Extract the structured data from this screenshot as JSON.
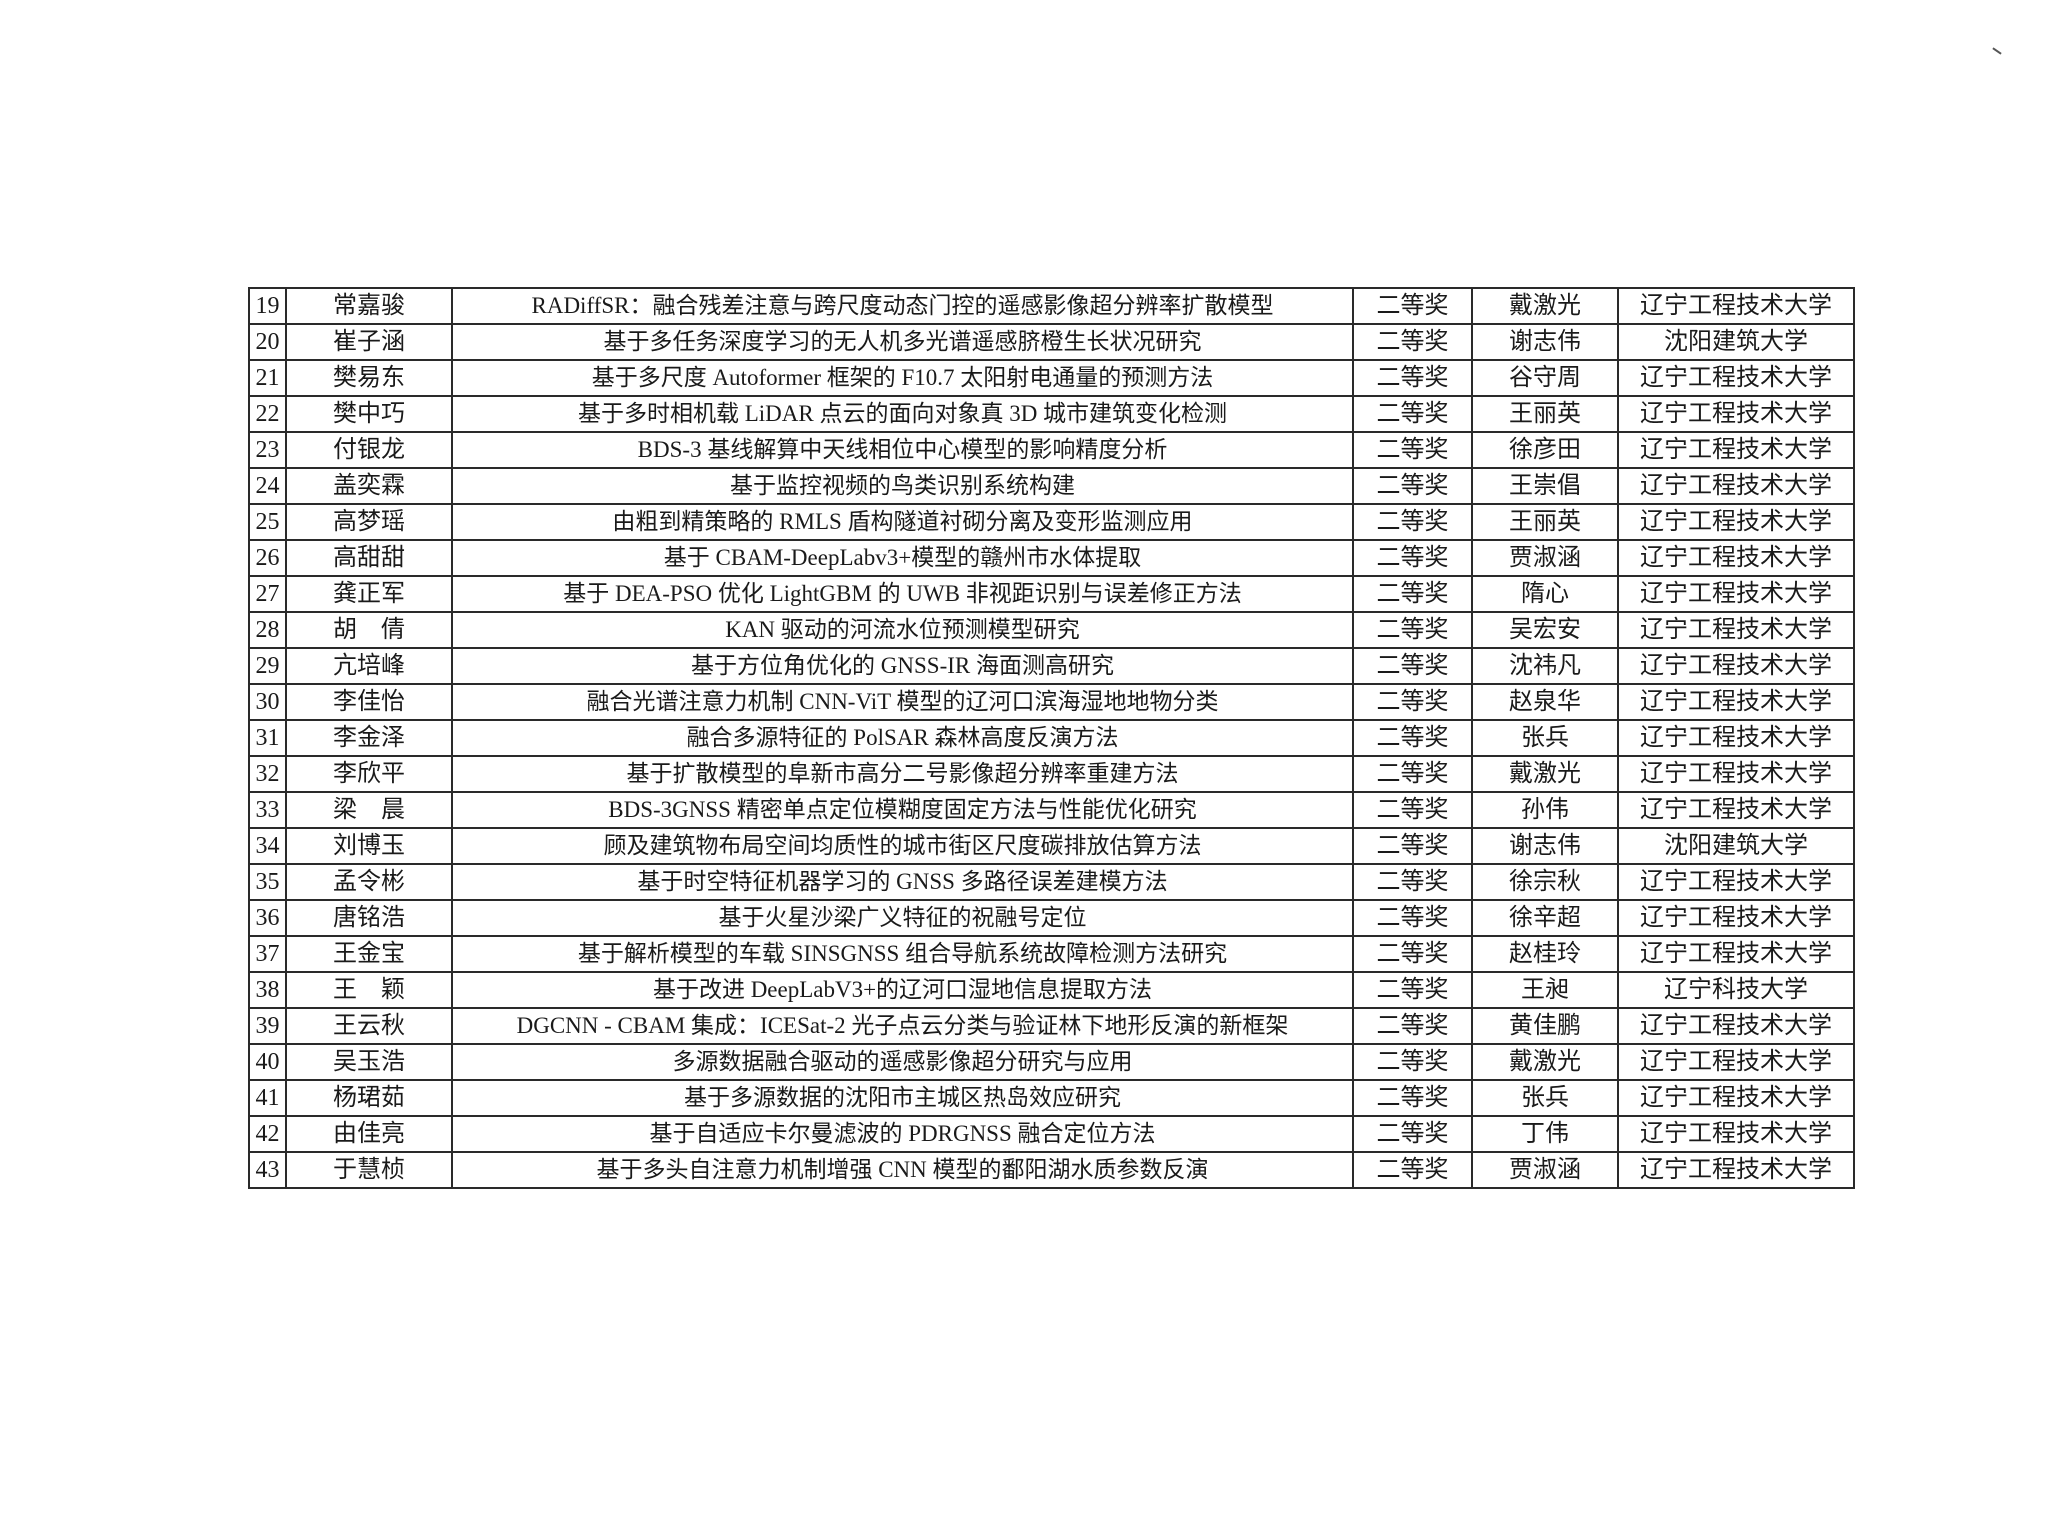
{
  "award_list": {
    "rows": [
      {
        "no": "19",
        "student": "常嘉骏",
        "title": "RADiffSR：融合残差注意与跨尺度动态门控的遥感影像超分辨率扩散模型",
        "award": "二等奖",
        "advisor": "戴激光",
        "school": "辽宁工程技术大学"
      },
      {
        "no": "20",
        "student": "崔子涵",
        "title": "基于多任务深度学习的无人机多光谱遥感脐橙生长状况研究",
        "award": "二等奖",
        "advisor": "谢志伟",
        "school": "沈阳建筑大学"
      },
      {
        "no": "21",
        "student": "樊易东",
        "title": "基于多尺度 Autoformer 框架的 F10.7 太阳射电通量的预测方法",
        "award": "二等奖",
        "advisor": "谷守周",
        "school": "辽宁工程技术大学"
      },
      {
        "no": "22",
        "student": "樊中巧",
        "title": "基于多时相机载 LiDAR 点云的面向对象真 3D 城市建筑变化检测",
        "award": "二等奖",
        "advisor": "王丽英",
        "school": "辽宁工程技术大学"
      },
      {
        "no": "23",
        "student": "付银龙",
        "title": "BDS-3 基线解算中天线相位中心模型的影响精度分析",
        "award": "二等奖",
        "advisor": "徐彦田",
        "school": "辽宁工程技术大学"
      },
      {
        "no": "24",
        "student": "盖奕霖",
        "title": "基于监控视频的鸟类识别系统构建",
        "award": "二等奖",
        "advisor": "王崇倡",
        "school": "辽宁工程技术大学"
      },
      {
        "no": "25",
        "student": "高梦瑶",
        "title": "由粗到精策略的 RMLS 盾构隧道衬砌分离及变形监测应用",
        "award": "二等奖",
        "advisor": "王丽英",
        "school": "辽宁工程技术大学"
      },
      {
        "no": "26",
        "student": "高甜甜",
        "title": "基于 CBAM-DeepLabv3+模型的赣州市水体提取",
        "award": "二等奖",
        "advisor": "贾淑涵",
        "school": "辽宁工程技术大学"
      },
      {
        "no": "27",
        "student": "龚正军",
        "title": "基于 DEA-PSO 优化 LightGBM 的 UWB 非视距识别与误差修正方法",
        "award": "二等奖",
        "advisor": "隋心",
        "school": "辽宁工程技术大学"
      },
      {
        "no": "28",
        "student": "胡　倩",
        "title": "KAN 驱动的河流水位预测模型研究",
        "award": "二等奖",
        "advisor": "吴宏安",
        "school": "辽宁工程技术大学"
      },
      {
        "no": "29",
        "student": "亢培峰",
        "title": "基于方位角优化的 GNSS-IR 海面测高研究",
        "award": "二等奖",
        "advisor": "沈祎凡",
        "school": "辽宁工程技术大学"
      },
      {
        "no": "30",
        "student": "李佳怡",
        "title": "融合光谱注意力机制 CNN-ViT 模型的辽河口滨海湿地地物分类",
        "award": "二等奖",
        "advisor": "赵泉华",
        "school": "辽宁工程技术大学"
      },
      {
        "no": "31",
        "student": "李金泽",
        "title": "融合多源特征的 PolSAR 森林高度反演方法",
        "award": "二等奖",
        "advisor": "张兵",
        "school": "辽宁工程技术大学"
      },
      {
        "no": "32",
        "student": "李欣平",
        "title": "基于扩散模型的阜新市高分二号影像超分辨率重建方法",
        "award": "二等奖",
        "advisor": "戴激光",
        "school": "辽宁工程技术大学"
      },
      {
        "no": "33",
        "student": "梁　晨",
        "title": "BDS-3GNSS 精密单点定位模糊度固定方法与性能优化研究",
        "award": "二等奖",
        "advisor": "孙伟",
        "school": "辽宁工程技术大学"
      },
      {
        "no": "34",
        "student": "刘博玉",
        "title": "顾及建筑物布局空间均质性的城市街区尺度碳排放估算方法",
        "award": "二等奖",
        "advisor": "谢志伟",
        "school": "沈阳建筑大学"
      },
      {
        "no": "35",
        "student": "孟令彬",
        "title": "基于时空特征机器学习的 GNSS 多路径误差建模方法",
        "award": "二等奖",
        "advisor": "徐宗秋",
        "school": "辽宁工程技术大学"
      },
      {
        "no": "36",
        "student": "唐铭浩",
        "title": "基于火星沙梁广义特征的祝融号定位",
        "award": "二等奖",
        "advisor": "徐辛超",
        "school": "辽宁工程技术大学"
      },
      {
        "no": "37",
        "student": "王金宝",
        "title": "基于解析模型的车载 SINSGNSS 组合导航系统故障检测方法研究",
        "award": "二等奖",
        "advisor": "赵桂玲",
        "school": "辽宁工程技术大学"
      },
      {
        "no": "38",
        "student": "王　颖",
        "title": "基于改进 DeepLabV3+的辽河口湿地信息提取方法",
        "award": "二等奖",
        "advisor": "王昶",
        "school": "辽宁科技大学"
      },
      {
        "no": "39",
        "student": "王云秋",
        "title": "DGCNN - CBAM 集成：ICESat-2 光子点云分类与验证林下地形反演的新框架",
        "award": "二等奖",
        "advisor": "黄佳鹏",
        "school": "辽宁工程技术大学"
      },
      {
        "no": "40",
        "student": "吴玉浩",
        "title": "多源数据融合驱动的遥感影像超分研究与应用",
        "award": "二等奖",
        "advisor": "戴激光",
        "school": "辽宁工程技术大学"
      },
      {
        "no": "41",
        "student": "杨珺茹",
        "title": "基于多源数据的沈阳市主城区热岛效应研究",
        "award": "二等奖",
        "advisor": "张兵",
        "school": "辽宁工程技术大学"
      },
      {
        "no": "42",
        "student": "由佳亮",
        "title": "基于自适应卡尔曼滤波的 PDRGNSS 融合定位方法",
        "award": "二等奖",
        "advisor": "丁伟",
        "school": "辽宁工程技术大学"
      },
      {
        "no": "43",
        "student": "于慧桢",
        "title": "基于多头自注意力机制增强 CNN 模型的鄱阳湖水质参数反演",
        "award": "二等奖",
        "advisor": "贾淑涵",
        "school": "辽宁工程技术大学"
      }
    ]
  }
}
